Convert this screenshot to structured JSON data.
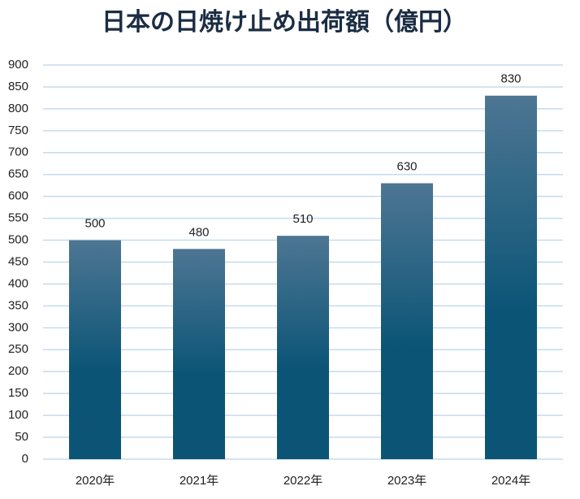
{
  "chart_data": {
    "type": "bar",
    "title": "日本の日焼け止め出荷額（億円）",
    "categories": [
      "2020年",
      "2021年",
      "2022年",
      "2023年",
      "2024年"
    ],
    "values": [
      500,
      480,
      510,
      630,
      830
    ],
    "color": "#0b5476",
    "ylim": [
      0,
      900
    ],
    "yticks": [
      0,
      50,
      100,
      150,
      200,
      250,
      300,
      350,
      400,
      450,
      500,
      550,
      600,
      650,
      700,
      750,
      800,
      850,
      900
    ],
    "grid": true
  }
}
